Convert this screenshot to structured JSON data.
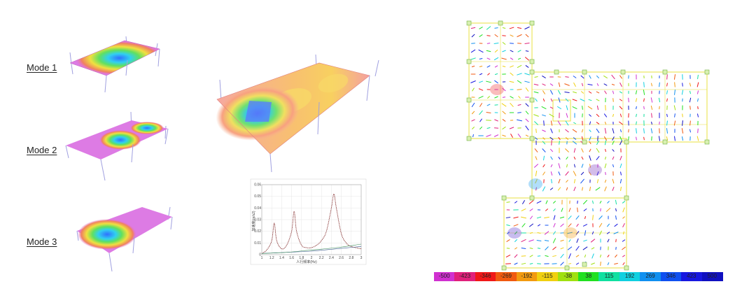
{
  "modes": [
    {
      "label": "Mode 1"
    },
    {
      "label": "Mode 2"
    },
    {
      "label": "Mode 3"
    }
  ],
  "chart_data": {
    "type": "line",
    "title": "",
    "xlabel": "人行频率(Hz)",
    "ylabel": "加速度(m/s2)",
    "xlim": [
      1,
      3
    ],
    "ylim": [
      0,
      0.06
    ],
    "x_ticks": [
      "1",
      "1.2",
      "1.4",
      "1.6",
      "1.8",
      "2",
      "2.2",
      "2.4",
      "2.6",
      "2.8",
      "3"
    ],
    "y_ticks": [
      "0",
      "0.01",
      "0.02",
      "0.03",
      "0.04",
      "0.05",
      "0.06"
    ],
    "grid": true,
    "series": [
      {
        "color": "#8b3a3a",
        "x": [
          1,
          1.1,
          1.2,
          1.25,
          1.3,
          1.4,
          1.5,
          1.6,
          1.65,
          1.7,
          1.8,
          1.9,
          2.0,
          2.1,
          2.2,
          2.3,
          2.4,
          2.45,
          2.5,
          2.6,
          2.7,
          2.8,
          3.0
        ],
        "values": [
          0.001,
          0.004,
          0.012,
          0.027,
          0.012,
          0.005,
          0.008,
          0.02,
          0.037,
          0.02,
          0.008,
          0.006,
          0.006,
          0.008,
          0.012,
          0.02,
          0.04,
          0.052,
          0.04,
          0.018,
          0.01,
          0.007,
          0.005
        ]
      },
      {
        "color": "#3a5a8b",
        "x": [
          1,
          1.5,
          2.0,
          2.5,
          3.0
        ],
        "values": [
          0.001,
          0.002,
          0.003,
          0.005,
          0.007
        ]
      },
      {
        "color": "#3a8b5a",
        "x": [
          1,
          1.5,
          2.0,
          2.5,
          3.0
        ],
        "values": [
          0.001,
          0.002,
          0.004,
          0.006,
          0.009
        ]
      }
    ]
  },
  "legend_ticks": [
    "-500",
    "-423",
    "-346",
    "-269",
    "-192",
    "-115",
    "-38",
    "38",
    "115",
    "192",
    "269",
    "346",
    "423",
    "500"
  ],
  "legend_colors": [
    "#d030d0",
    "#e0207a",
    "#f01818",
    "#f05a10",
    "#f29a10",
    "#f0d010",
    "#a0e010",
    "#20e020",
    "#10e0a0",
    "#10d0e0",
    "#1090f0",
    "#1050f0",
    "#1818e0",
    "#1010c0"
  ]
}
